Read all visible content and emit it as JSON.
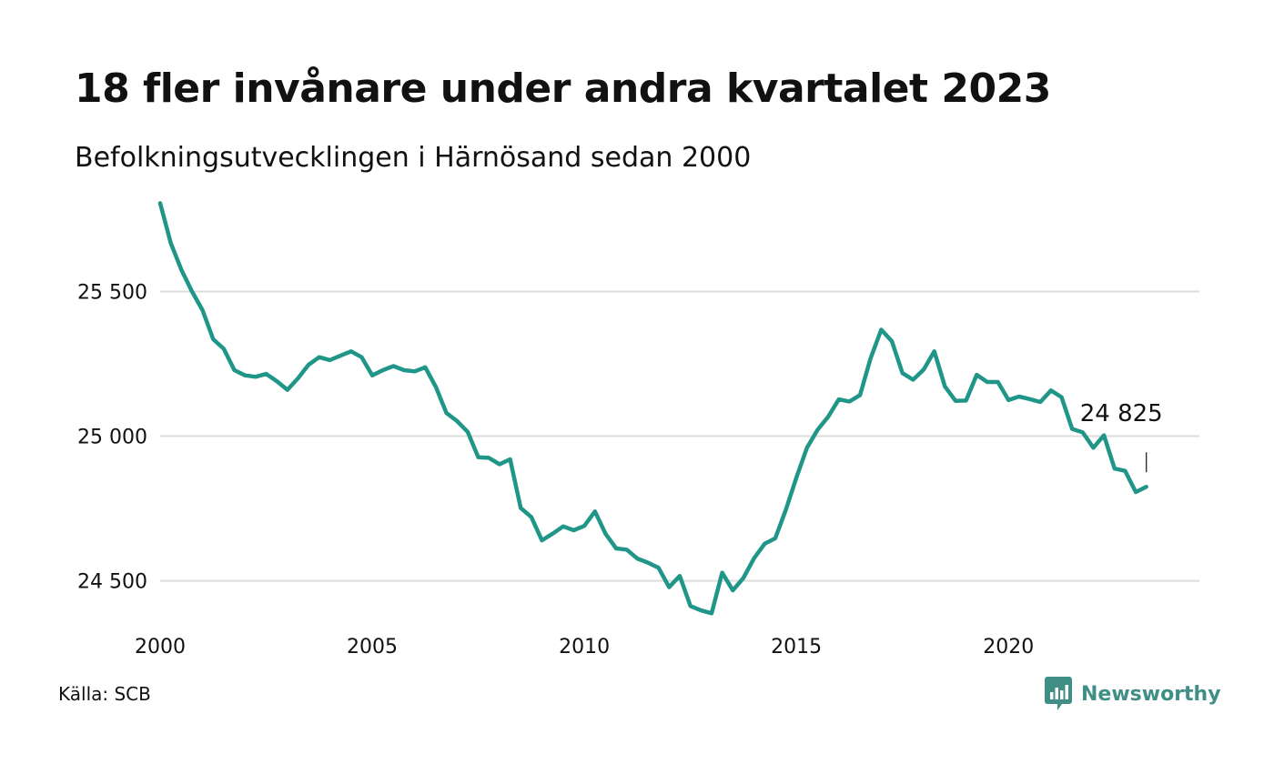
{
  "title": "18 fler invånare under andra kvartalet 2023",
  "subtitle": "Befolkningsutvecklingen i Härnösand sedan 2000",
  "source": "Källa: SCB",
  "brand": {
    "name": "Newsworthy",
    "icon": "newsworthy-logo-icon",
    "color": "#3f8f87"
  },
  "chart_data": {
    "type": "line",
    "title": "18 fler invånare under andra kvartalet 2023",
    "subtitle": "Befolkningsutvecklingen i Härnösand sedan 2000",
    "line_color": "#1f9688",
    "grid": true,
    "xlim": [
      2000,
      2024.5
    ],
    "ylim": [
      24370,
      25800
    ],
    "x_ticks": [
      2000,
      2005,
      2010,
      2015,
      2020
    ],
    "x_tick_labels": [
      "2000",
      "2005",
      "2010",
      "2015",
      "2020"
    ],
    "y_ticks": [
      24500,
      25000,
      25500
    ],
    "y_tick_labels": [
      "24 500",
      "25 000",
      "25 500"
    ],
    "end_label": "24 825",
    "x": [
      2000.0,
      2000.25,
      2000.5,
      2000.75,
      2001.0,
      2001.25,
      2001.5,
      2001.75,
      2002.0,
      2002.25,
      2002.5,
      2002.75,
      2003.0,
      2003.25,
      2003.5,
      2003.75,
      2004.0,
      2004.25,
      2004.5,
      2004.75,
      2005.0,
      2005.25,
      2005.5,
      2005.75,
      2006.0,
      2006.25,
      2006.5,
      2006.75,
      2007.0,
      2007.25,
      2007.5,
      2007.75,
      2008.0,
      2008.25,
      2008.5,
      2008.75,
      2009.0,
      2009.25,
      2009.5,
      2009.75,
      2010.0,
      2010.25,
      2010.5,
      2010.75,
      2011.0,
      2011.25,
      2011.5,
      2011.75,
      2012.0,
      2012.25,
      2012.5,
      2012.75,
      2013.0,
      2013.25,
      2013.5,
      2013.75,
      2014.0,
      2014.25,
      2014.5,
      2014.75,
      2015.0,
      2015.25,
      2015.5,
      2015.75,
      2016.0,
      2016.25,
      2016.5,
      2016.75,
      2017.0,
      2017.25,
      2017.5,
      2017.75,
      2018.0,
      2018.25,
      2018.5,
      2018.75,
      2019.0,
      2019.25,
      2019.5,
      2019.75,
      2020.0,
      2020.25,
      2020.5,
      2020.75,
      2021.0,
      2021.25,
      2021.5,
      2021.75,
      2022.0,
      2022.25,
      2022.5,
      2022.75,
      2023.0,
      2023.25
    ],
    "series": [
      {
        "values": [
          25805,
          25667,
          25575,
          25500,
          25435,
          25335,
          25302,
          25228,
          25210,
          25205,
          25215,
          25190,
          25160,
          25200,
          25247,
          25273,
          25263,
          25278,
          25293,
          25273,
          25210,
          25228,
          25242,
          25228,
          25224,
          25238,
          25170,
          25080,
          25052,
          25015,
          24927,
          24925,
          24903,
          24920,
          24752,
          24720,
          24640,
          24663,
          24688,
          24675,
          24690,
          24740,
          24663,
          24612,
          24608,
          24577,
          24563,
          24545,
          24478,
          24517,
          24413,
          24398,
          24388,
          24528,
          24467,
          24510,
          24578,
          24628,
          24647,
          24745,
          24857,
          24960,
          25022,
          25067,
          25127,
          25120,
          25142,
          25270,
          25368,
          25328,
          25218,
          25195,
          25230,
          25293,
          25172,
          25122,
          25123,
          25212,
          25187,
          25187,
          25125,
          25137,
          25128,
          25118,
          25158,
          25135,
          25025,
          25013,
          24960,
          25003,
          24888,
          24880,
          24807,
          24825
        ]
      }
    ]
  }
}
